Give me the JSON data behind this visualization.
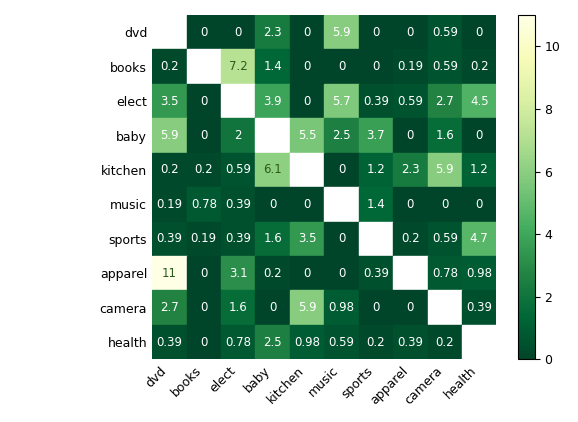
{
  "labels": [
    "dvd",
    "books",
    "elect",
    "baby",
    "kitchen",
    "music",
    "sports",
    "apparel",
    "camera",
    "health"
  ],
  "matrix": [
    [
      null,
      0,
      0,
      2.3,
      0,
      5.9,
      0,
      0,
      0.59,
      0
    ],
    [
      0.2,
      null,
      7.2,
      1.4,
      0,
      0,
      0,
      0.19,
      0.59,
      0.2
    ],
    [
      3.5,
      0,
      null,
      3.9,
      0,
      5.7,
      0.39,
      0.59,
      2.7,
      4.5
    ],
    [
      5.9,
      0,
      2,
      null,
      5.5,
      2.5,
      3.7,
      0,
      1.6,
      0
    ],
    [
      0.2,
      0.2,
      0.59,
      6.1,
      null,
      0,
      1.2,
      2.3,
      5.9,
      1.2
    ],
    [
      0.19,
      0.78,
      0.39,
      0,
      0,
      null,
      1.4,
      0,
      0,
      0
    ],
    [
      0.39,
      0.19,
      0.39,
      1.6,
      3.5,
      0,
      null,
      0.2,
      0.59,
      4.7
    ],
    [
      11,
      0,
      3.1,
      0.2,
      0,
      0,
      0.39,
      null,
      0.78,
      0.98
    ],
    [
      2.7,
      0,
      1.6,
      0,
      5.9,
      0.98,
      0,
      0,
      null,
      0.39
    ],
    [
      0.39,
      0,
      0.78,
      2.5,
      0.98,
      0.59,
      0.2,
      0.39,
      0.2,
      null
    ]
  ],
  "vmin": 0,
  "vmax": 11,
  "cmap": "YlGn_r",
  "colorbar_ticks": [
    0,
    2,
    4,
    6,
    8,
    10
  ],
  "text_color_threshold": 6.0,
  "figsize": [
    5.78,
    4.22
  ],
  "dpi": 100,
  "cell_fontsize": 8.5,
  "tick_fontsize": 9,
  "diagonal_color": "white"
}
